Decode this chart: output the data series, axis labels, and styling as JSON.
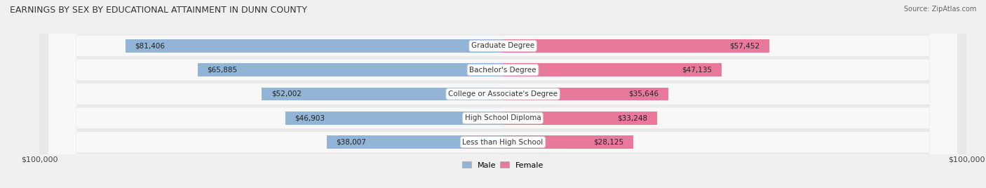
{
  "title": "EARNINGS BY SEX BY EDUCATIONAL ATTAINMENT IN DUNN COUNTY",
  "source": "Source: ZipAtlas.com",
  "categories": [
    "Less than High School",
    "High School Diploma",
    "College or Associate's Degree",
    "Bachelor's Degree",
    "Graduate Degree"
  ],
  "male_values": [
    38007,
    46903,
    52002,
    65885,
    81406
  ],
  "female_values": [
    28125,
    33248,
    35646,
    47135,
    57452
  ],
  "male_color": "#92b4d7",
  "female_color": "#e8799a",
  "male_label": "Male",
  "female_label": "Female",
  "axis_max": 100000,
  "x_tick_label_left": "$100,000",
  "x_tick_label_right": "$100,000",
  "background_color": "#f0f0f0",
  "row_bg_color": "#e8e8e8",
  "row_inner_bg": "#f8f8f8",
  "label_box_color": "#ffffff",
  "title_fontsize": 9,
  "source_fontsize": 7,
  "value_fontsize": 7.5,
  "category_fontsize": 7.5
}
